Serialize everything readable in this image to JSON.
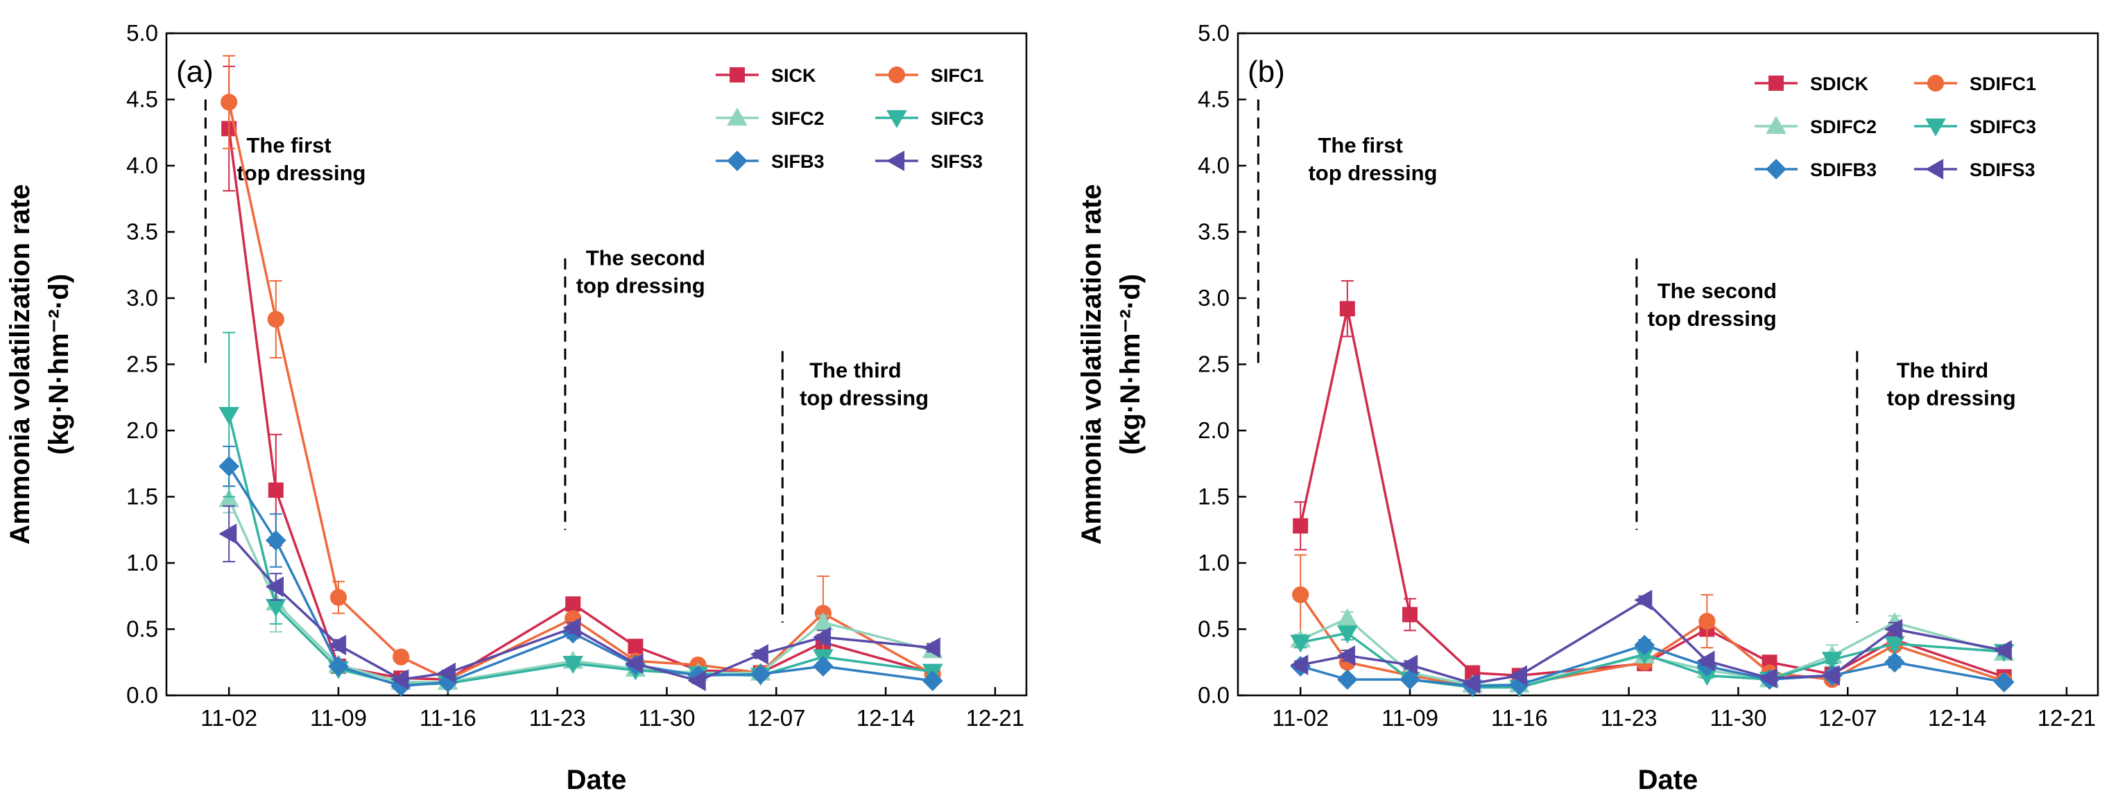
{
  "chart_data": [
    {
      "type": "line",
      "panel_label": "(a)",
      "xlabel": "Date",
      "ylabel": "Ammonia volatilization rate",
      "ylabel_unit": "(kg·N·hm⁻²·d)",
      "ylim": [
        0,
        5.0
      ],
      "yticks": [
        "0.0",
        "0.5",
        "1.0",
        "1.5",
        "2.0",
        "2.5",
        "3.0",
        "3.5",
        "4.0",
        "4.5",
        "5.0"
      ],
      "xlim": [
        -3,
        52
      ],
      "xticks": [
        {
          "label": "11-02",
          "day": 1
        },
        {
          "label": "11-09",
          "day": 8
        },
        {
          "label": "11-16",
          "day": 15
        },
        {
          "label": "11-23",
          "day": 22
        },
        {
          "label": "11-30",
          "day": 29
        },
        {
          "label": "12-07",
          "day": 36
        },
        {
          "label": "12-14",
          "day": 43
        },
        {
          "label": "12-21",
          "day": 50
        }
      ],
      "legend_position": "top-right",
      "annotations": [
        {
          "id": "first",
          "lines": [
            "The first",
            "top dressing"
          ],
          "x": -0.5,
          "y_top": 4.5,
          "y_bottom": 2.5,
          "tx": 1.5,
          "ty": 4.1
        },
        {
          "id": "second",
          "lines": [
            "The second",
            "top dressing"
          ],
          "x": 22.5,
          "y_top": 3.3,
          "y_bottom": 1.25,
          "tx": 23.2,
          "ty": 3.25
        },
        {
          "id": "third",
          "lines": [
            "The third",
            "top dressing"
          ],
          "x": 36.4,
          "y_top": 2.6,
          "y_bottom": 0.55,
          "tx": 37.5,
          "ty": 2.4
        }
      ],
      "series": [
        {
          "name": "SICK",
          "color": "#d12b4e",
          "marker": "square",
          "x": [
            1,
            4,
            8,
            12,
            15,
            23,
            27,
            31,
            35,
            39,
            46
          ],
          "y": [
            4.28,
            1.55,
            0.22,
            0.13,
            0.12,
            0.69,
            0.37,
            0.19,
            0.17,
            0.4,
            0.17
          ],
          "err": [
            0.47,
            0.42,
            0.03,
            0.02,
            0.02,
            0.03,
            0.03,
            0.02,
            0.02,
            0.06,
            0.02
          ]
        },
        {
          "name": "SIFC1",
          "color": "#ee6a3b",
          "marker": "circle",
          "x": [
            1,
            4,
            8,
            12,
            15,
            23,
            27,
            31,
            35,
            39,
            46
          ],
          "y": [
            4.48,
            2.84,
            0.74,
            0.29,
            0.12,
            0.58,
            0.26,
            0.23,
            0.17,
            0.62,
            0.16
          ],
          "err": [
            0.35,
            0.29,
            0.12,
            0.03,
            0.02,
            0.04,
            0.03,
            0.02,
            0.02,
            0.28,
            0.02
          ]
        },
        {
          "name": "SIFC2",
          "color": "#8fd4bc",
          "marker": "triangle-up",
          "x": [
            1,
            4,
            8,
            12,
            15,
            23,
            27,
            31,
            35,
            39,
            46
          ],
          "y": [
            1.48,
            0.7,
            0.23,
            0.1,
            0.1,
            0.26,
            0.2,
            0.17,
            0.17,
            0.55,
            0.34
          ],
          "err": [
            0.1,
            0.22,
            0.02,
            0.02,
            0.02,
            0.03,
            0.02,
            0.02,
            0.02,
            0.05,
            0.03
          ]
        },
        {
          "name": "SIFC3",
          "color": "#33b4a0",
          "marker": "triangle-down",
          "x": [
            1,
            4,
            8,
            12,
            15,
            23,
            27,
            31,
            35,
            39,
            46
          ],
          "y": [
            2.12,
            0.67,
            0.2,
            0.08,
            0.09,
            0.24,
            0.19,
            0.16,
            0.15,
            0.29,
            0.18
          ],
          "err": [
            0.62,
            0.13,
            0.03,
            0.02,
            0.02,
            0.02,
            0.02,
            0.02,
            0.02,
            0.05,
            0.02
          ]
        },
        {
          "name": "SIFB3",
          "color": "#2f7fc1",
          "marker": "diamond",
          "x": [
            1,
            4,
            8,
            12,
            15,
            23,
            27,
            31,
            35,
            39,
            46
          ],
          "y": [
            1.73,
            1.17,
            0.22,
            0.07,
            0.1,
            0.47,
            0.23,
            0.15,
            0.16,
            0.22,
            0.11
          ],
          "err": [
            0.15,
            0.2,
            0.03,
            0.01,
            0.02,
            0.04,
            0.02,
            0.02,
            0.02,
            0.03,
            0.02
          ]
        },
        {
          "name": "SIFS3",
          "color": "#5a4aa8",
          "marker": "triangle-left",
          "x": [
            1,
            4,
            8,
            12,
            15,
            23,
            27,
            31,
            35,
            39,
            46
          ],
          "y": [
            1.22,
            0.82,
            0.38,
            0.12,
            0.17,
            0.51,
            0.24,
            0.11,
            0.31,
            0.44,
            0.36
          ],
          "err": [
            0.21,
            0.1,
            0.04,
            0.02,
            0.02,
            0.04,
            0.02,
            0.02,
            0.03,
            0.05,
            0.03
          ]
        }
      ]
    },
    {
      "type": "line",
      "panel_label": "(b)",
      "xlabel": "Date",
      "ylabel": "Ammonia volatilization rate",
      "ylabel_unit": "(kg·N·hm⁻²·d)",
      "ylim": [
        0,
        5.0
      ],
      "yticks": [
        "0.0",
        "0.5",
        "1.0",
        "1.5",
        "2.0",
        "2.5",
        "3.0",
        "3.5",
        "4.0",
        "4.5",
        "5.0"
      ],
      "xlim": [
        -3,
        52
      ],
      "xticks": [
        {
          "label": "11-02",
          "day": 1
        },
        {
          "label": "11-09",
          "day": 8
        },
        {
          "label": "11-16",
          "day": 15
        },
        {
          "label": "11-23",
          "day": 22
        },
        {
          "label": "11-30",
          "day": 29
        },
        {
          "label": "12-07",
          "day": 36
        },
        {
          "label": "12-14",
          "day": 43
        },
        {
          "label": "12-21",
          "day": 50
        }
      ],
      "legend_position": "top-right",
      "annotations": [
        {
          "id": "first",
          "lines": [
            "The first",
            "top dressing"
          ],
          "x": -1.7,
          "y_top": 4.5,
          "y_bottom": 2.5,
          "tx": 1.5,
          "ty": 4.1
        },
        {
          "id": "second",
          "lines": [
            "The second",
            "top dressing"
          ],
          "x": 22.5,
          "y_top": 3.3,
          "y_bottom": 1.25,
          "tx": 23.2,
          "ty": 3.0
        },
        {
          "id": "third",
          "lines": [
            "The third",
            "top dressing"
          ],
          "x": 36.6,
          "y_top": 2.6,
          "y_bottom": 0.55,
          "tx": 38.5,
          "ty": 2.4
        }
      ],
      "series": [
        {
          "name": "SDICK",
          "color": "#d12b4e",
          "marker": "square",
          "x": [
            1,
            4,
            8,
            12,
            15,
            23,
            27,
            31,
            35,
            39,
            46
          ],
          "y": [
            1.28,
            2.92,
            0.61,
            0.17,
            0.15,
            0.24,
            0.5,
            0.25,
            0.16,
            0.42,
            0.14
          ],
          "err": [
            0.18,
            0.21,
            0.12,
            0.02,
            0.02,
            0.03,
            0.05,
            0.03,
            0.02,
            0.05,
            0.02
          ]
        },
        {
          "name": "SDIFC1",
          "color": "#ee6a3b",
          "marker": "circle",
          "x": [
            1,
            4,
            8,
            12,
            15,
            23,
            27,
            31,
            35,
            39,
            46
          ],
          "y": [
            0.76,
            0.25,
            0.15,
            0.07,
            0.08,
            0.25,
            0.56,
            0.17,
            0.12,
            0.38,
            0.11
          ],
          "err": [
            0.3,
            0.04,
            0.02,
            0.01,
            0.02,
            0.03,
            0.2,
            0.02,
            0.03,
            0.04,
            0.02
          ]
        },
        {
          "name": "SDIFC2",
          "color": "#8fd4bc",
          "marker": "triangle-up",
          "x": [
            1,
            4,
            8,
            12,
            15,
            23,
            27,
            31,
            35,
            39,
            46
          ],
          "y": [
            0.42,
            0.58,
            0.17,
            0.08,
            0.08,
            0.3,
            0.19,
            0.12,
            0.3,
            0.55,
            0.32
          ],
          "err": [
            0.04,
            0.05,
            0.02,
            0.01,
            0.02,
            0.03,
            0.02,
            0.02,
            0.08,
            0.05,
            0.03
          ]
        },
        {
          "name": "SDIFC3",
          "color": "#33b4a0",
          "marker": "triangle-down",
          "x": [
            1,
            4,
            8,
            12,
            15,
            23,
            27,
            31,
            35,
            39,
            46
          ],
          "y": [
            0.4,
            0.47,
            0.12,
            0.06,
            0.06,
            0.31,
            0.15,
            0.12,
            0.27,
            0.39,
            0.33
          ],
          "err": [
            0.04,
            0.05,
            0.02,
            0.01,
            0.02,
            0.03,
            0.02,
            0.02,
            0.03,
            0.04,
            0.03
          ]
        },
        {
          "name": "SDIFB3",
          "color": "#2f7fc1",
          "marker": "diamond",
          "x": [
            1,
            4,
            8,
            12,
            15,
            23,
            27,
            31,
            35,
            39,
            46
          ],
          "y": [
            0.22,
            0.12,
            0.12,
            0.07,
            0.08,
            0.38,
            0.22,
            0.12,
            0.15,
            0.25,
            0.1
          ],
          "err": [
            0.02,
            0.02,
            0.02,
            0.01,
            0.02,
            0.04,
            0.02,
            0.02,
            0.02,
            0.04,
            0.02
          ]
        },
        {
          "name": "SDIFS3",
          "color": "#5a4aa8",
          "marker": "triangle-left",
          "x": [
            1,
            4,
            8,
            12,
            15,
            23,
            27,
            31,
            35,
            39,
            46
          ],
          "y": [
            0.23,
            0.3,
            0.23,
            0.09,
            0.15,
            0.72,
            0.26,
            0.13,
            0.15,
            0.5,
            0.34
          ],
          "err": [
            0.03,
            0.04,
            0.03,
            0.02,
            0.02,
            0.03,
            0.03,
            0.02,
            0.02,
            0.05,
            0.03
          ]
        }
      ]
    }
  ]
}
